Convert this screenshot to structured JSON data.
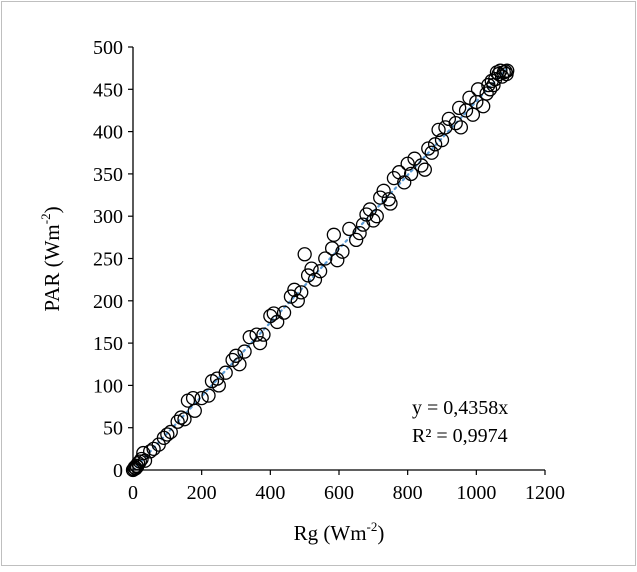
{
  "chart_data": {
    "type": "scatter",
    "xlabel": "Rg (Wm",
    "xlabel_sup": "-2",
    "xlabel_end": ")",
    "ylabel": "PAR (Wm",
    "ylabel_sup": "-2",
    "ylabel_end": ")",
    "xlim": [
      0,
      1200
    ],
    "ylim": [
      0,
      500
    ],
    "x_ticks": [
      "0",
      "200",
      "400",
      "600",
      "800",
      "1000",
      "1200"
    ],
    "y_ticks": [
      "0",
      "50",
      "100",
      "150",
      "200",
      "250",
      "300",
      "350",
      "400",
      "450",
      "500"
    ],
    "grid": false,
    "legend": "none",
    "trendline": {
      "slope": 0.4358,
      "color": "#5b9bd5"
    },
    "annotations": {
      "equation": "y = 0,4358x",
      "r2": "R² = 0,9974"
    },
    "points": [
      [
        0,
        0
      ],
      [
        3,
        1
      ],
      [
        5,
        3
      ],
      [
        8,
        2
      ],
      [
        10,
        5
      ],
      [
        12,
        4
      ],
      [
        15,
        8
      ],
      [
        20,
        10
      ],
      [
        25,
        13
      ],
      [
        30,
        20
      ],
      [
        35,
        11
      ],
      [
        50,
        22
      ],
      [
        60,
        25
      ],
      [
        75,
        30
      ],
      [
        90,
        38
      ],
      [
        100,
        42
      ],
      [
        110,
        45
      ],
      [
        130,
        57
      ],
      [
        140,
        62
      ],
      [
        150,
        60
      ],
      [
        160,
        82
      ],
      [
        175,
        85
      ],
      [
        180,
        70
      ],
      [
        200,
        85
      ],
      [
        220,
        88
      ],
      [
        230,
        105
      ],
      [
        245,
        108
      ],
      [
        250,
        100
      ],
      [
        270,
        115
      ],
      [
        290,
        130
      ],
      [
        300,
        135
      ],
      [
        310,
        125
      ],
      [
        325,
        140
      ],
      [
        340,
        157
      ],
      [
        360,
        160
      ],
      [
        370,
        150
      ],
      [
        380,
        160
      ],
      [
        400,
        182
      ],
      [
        410,
        185
      ],
      [
        420,
        175
      ],
      [
        440,
        186
      ],
      [
        460,
        205
      ],
      [
        470,
        213
      ],
      [
        480,
        200
      ],
      [
        490,
        210
      ],
      [
        500,
        255
      ],
      [
        510,
        230
      ],
      [
        520,
        238
      ],
      [
        530,
        225
      ],
      [
        545,
        235
      ],
      [
        560,
        250
      ],
      [
        580,
        262
      ],
      [
        585,
        278
      ],
      [
        595,
        248
      ],
      [
        610,
        258
      ],
      [
        630,
        285
      ],
      [
        650,
        272
      ],
      [
        660,
        280
      ],
      [
        670,
        290
      ],
      [
        680,
        302
      ],
      [
        690,
        308
      ],
      [
        700,
        295
      ],
      [
        710,
        300
      ],
      [
        720,
        322
      ],
      [
        730,
        330
      ],
      [
        745,
        320
      ],
      [
        750,
        315
      ],
      [
        760,
        345
      ],
      [
        775,
        352
      ],
      [
        790,
        340
      ],
      [
        800,
        362
      ],
      [
        810,
        350
      ],
      [
        820,
        368
      ],
      [
        840,
        360
      ],
      [
        850,
        355
      ],
      [
        860,
        380
      ],
      [
        870,
        375
      ],
      [
        880,
        385
      ],
      [
        890,
        402
      ],
      [
        900,
        390
      ],
      [
        910,
        405
      ],
      [
        920,
        415
      ],
      [
        940,
        410
      ],
      [
        950,
        428
      ],
      [
        955,
        405
      ],
      [
        970,
        425
      ],
      [
        980,
        440
      ],
      [
        990,
        420
      ],
      [
        1000,
        435
      ],
      [
        1005,
        450
      ],
      [
        1020,
        430
      ],
      [
        1030,
        445
      ],
      [
        1035,
        455
      ],
      [
        1040,
        450
      ],
      [
        1045,
        460
      ],
      [
        1050,
        455
      ],
      [
        1055,
        462
      ],
      [
        1060,
        470
      ],
      [
        1065,
        468
      ],
      [
        1070,
        472
      ],
      [
        1075,
        465
      ],
      [
        1080,
        470
      ],
      [
        1085,
        471
      ],
      [
        1088,
        468
      ],
      [
        1090,
        472
      ]
    ]
  }
}
